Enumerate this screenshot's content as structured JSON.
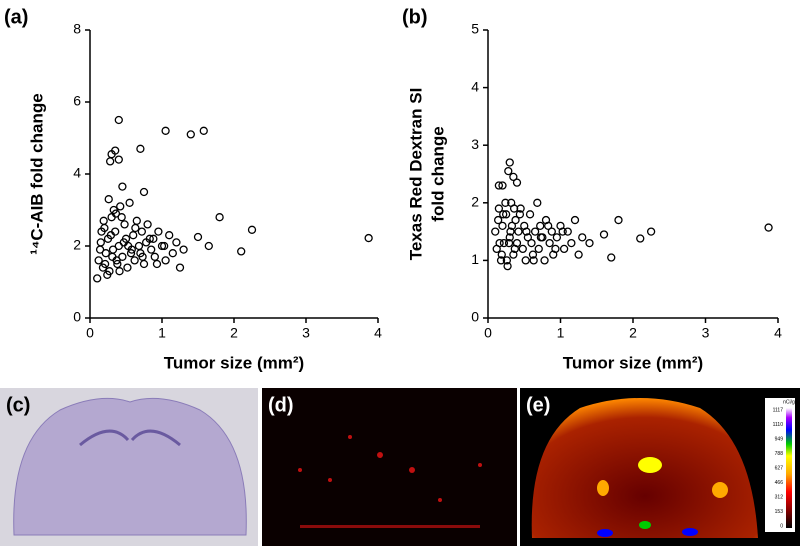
{
  "chart_data": [
    {
      "type": "scatter",
      "panel_label": "(a)",
      "xlabel": "Tumor size (mm²)",
      "ylabel": [
        "¹⁴C-AIB fold change"
      ],
      "xlim": [
        0,
        4
      ],
      "xticks": [
        0,
        1,
        2,
        3,
        4
      ],
      "ylim": [
        0,
        8
      ],
      "yticks": [
        0,
        2,
        4,
        6,
        8
      ],
      "color": "#000000",
      "x": [
        0.1,
        0.12,
        0.15,
        0.18,
        0.2,
        0.22,
        0.25,
        0.27,
        0.3,
        0.32,
        0.35,
        0.38,
        0.4,
        0.42,
        0.45,
        0.48,
        0.5,
        0.52,
        0.55,
        0.58,
        0.6,
        0.62,
        0.65,
        0.68,
        0.7,
        0.72,
        0.75,
        0.78,
        0.8,
        0.85,
        0.88,
        0.9,
        0.95,
        1.0,
        1.05,
        1.1,
        1.15,
        1.2,
        1.25,
        0.14,
        0.19,
        0.24,
        0.29,
        0.33,
        0.37,
        0.44,
        0.53,
        0.63,
        0.73,
        0.83,
        0.93,
        1.03,
        0.16,
        0.21,
        0.26,
        0.31,
        0.36,
        0.41,
        0.47,
        0.57,
        0.4,
        1.05,
        1.4,
        1.58,
        0.3,
        0.35,
        0.4,
        0.28,
        0.7,
        0.45,
        0.75,
        1.8,
        2.25,
        2.1,
        3.87,
        1.65,
        1.5,
        1.3
      ],
      "values": [
        1.1,
        1.6,
        2.1,
        1.4,
        2.5,
        1.8,
        2.2,
        1.3,
        2.8,
        1.9,
        2.4,
        1.5,
        2.0,
        3.1,
        1.7,
        2.6,
        2.2,
        1.4,
        3.2,
        1.9,
        2.3,
        1.6,
        2.7,
        2.0,
        1.8,
        2.4,
        1.5,
        2.1,
        2.6,
        1.9,
        2.2,
        1.7,
        2.4,
        2.0,
        1.6,
        2.3,
        1.8,
        2.1,
        1.4,
        1.9,
        2.7,
        1.2,
        2.3,
        3.0,
        1.6,
        2.8,
        2.0,
        2.5,
        1.7,
        2.2,
        1.5,
        2.0,
        2.4,
        1.5,
        3.3,
        1.7,
        2.9,
        1.3,
        2.1,
        1.8,
        5.5,
        5.2,
        5.1,
        5.2,
        4.55,
        4.65,
        4.4,
        4.35,
        4.7,
        3.65,
        3.5,
        2.8,
        2.45,
        1.85,
        2.22,
        2.0,
        2.25,
        1.9
      ]
    },
    {
      "type": "scatter",
      "panel_label": "(b)",
      "xlabel": "Tumor size (mm²)",
      "ylabel": [
        "Texas Red Dextran SI",
        "fold change"
      ],
      "xlim": [
        0,
        4
      ],
      "xticks": [
        0,
        1,
        2,
        3,
        4
      ],
      "ylim": [
        0,
        5
      ],
      "yticks": [
        0,
        1,
        2,
        3,
        4,
        5
      ],
      "color": "#000000",
      "x": [
        0.1,
        0.12,
        0.15,
        0.18,
        0.2,
        0.22,
        0.25,
        0.27,
        0.3,
        0.32,
        0.35,
        0.38,
        0.4,
        0.42,
        0.45,
        0.48,
        0.5,
        0.52,
        0.55,
        0.58,
        0.6,
        0.62,
        0.65,
        0.68,
        0.7,
        0.72,
        0.75,
        0.78,
        0.8,
        0.85,
        0.88,
        0.9,
        0.95,
        1.0,
        1.05,
        1.1,
        1.15,
        1.2,
        1.25,
        1.3,
        1.4,
        0.14,
        0.19,
        0.24,
        0.29,
        0.33,
        0.37,
        0.44,
        0.53,
        0.63,
        0.73,
        0.83,
        0.93,
        1.03,
        0.16,
        0.21,
        0.26,
        0.31,
        0.36,
        0.3,
        0.28,
        0.35,
        0.4,
        0.15,
        0.2,
        1.8,
        1.6,
        1.7,
        2.1,
        2.25,
        3.87
      ],
      "values": [
        1.5,
        1.2,
        1.9,
        1.0,
        1.6,
        1.3,
        1.8,
        0.9,
        1.4,
        2.0,
        1.1,
        1.7,
        1.3,
        1.5,
        1.9,
        1.2,
        1.6,
        1.0,
        1.4,
        1.8,
        1.3,
        1.1,
        1.5,
        2.0,
        1.2,
        1.6,
        1.4,
        1.0,
        1.7,
        1.3,
        1.5,
        1.1,
        1.4,
        1.6,
        1.2,
        1.5,
        1.3,
        1.7,
        1.1,
        1.4,
        1.3,
        1.7,
        1.1,
        2.0,
        1.3,
        1.6,
        1.2,
        1.8,
        1.5,
        1.0,
        1.4,
        1.6,
        1.2,
        1.5,
        1.3,
        1.8,
        1.0,
        1.5,
        1.9,
        2.7,
        2.55,
        2.45,
        2.35,
        2.3,
        2.3,
        1.7,
        1.45,
        1.05,
        1.38,
        1.5,
        1.57
      ]
    }
  ],
  "panels": [
    {
      "label": "(c)"
    },
    {
      "label": "(d)"
    },
    {
      "label": "(e)"
    }
  ],
  "colorbar": {
    "title": "nCi/g",
    "labels": [
      "1117",
      "1110",
      "949",
      "788",
      "627",
      "466",
      "312",
      "153",
      "0"
    ]
  }
}
